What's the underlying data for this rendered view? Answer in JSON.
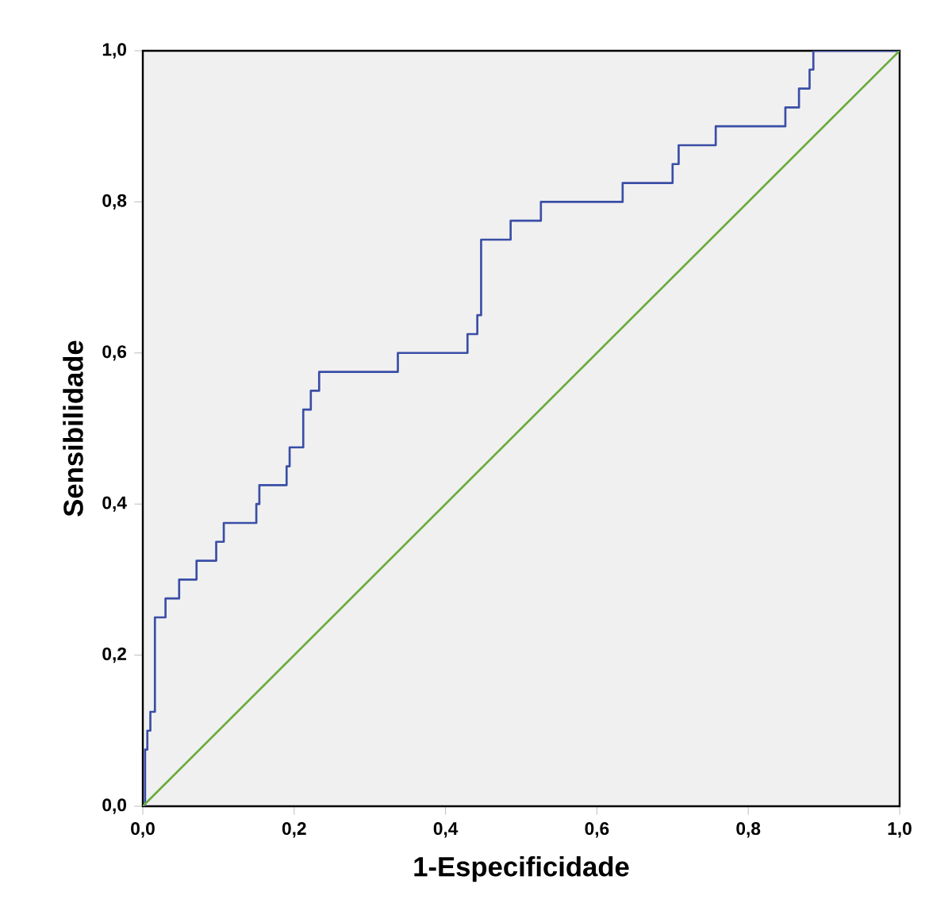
{
  "chart_data": {
    "type": "step",
    "xlabel": "1-Especificidade",
    "ylabel": "Sensibilidade",
    "xlim": [
      0,
      1
    ],
    "ylim": [
      0,
      1
    ],
    "xticks": [
      {
        "value": 0,
        "label": "0,0"
      },
      {
        "value": 0.2,
        "label": "0,2"
      },
      {
        "value": 0.4,
        "label": "0,4"
      },
      {
        "value": 0.6,
        "label": "0,6"
      },
      {
        "value": 0.8,
        "label": "0,8"
      },
      {
        "value": 1,
        "label": "1,0"
      }
    ],
    "yticks": [
      {
        "value": 0,
        "label": "0,0"
      },
      {
        "value": 0.2,
        "label": "0,2"
      },
      {
        "value": 0.4,
        "label": "0,4"
      },
      {
        "value": 0.6,
        "label": "0,6"
      },
      {
        "value": 0.8,
        "label": "0,8"
      },
      {
        "value": 1,
        "label": "1,0"
      }
    ],
    "grid": false,
    "series": [
      {
        "color": "#3a4ea6",
        "x": [
          0,
          0.003,
          0.006,
          0.01,
          0.016,
          0.03,
          0.048,
          0.071,
          0.097,
          0.107,
          0.15,
          0.154,
          0.19,
          0.194,
          0.212,
          0.222,
          0.233,
          0.337,
          0.429,
          0.442,
          0.447,
          0.486,
          0.526,
          0.634,
          0.7,
          0.708,
          0.757,
          0.849,
          0.867,
          0.881,
          0.886,
          1
        ],
        "values": [
          0,
          0.075,
          0.1,
          0.125,
          0.25,
          0.275,
          0.3,
          0.325,
          0.35,
          0.375,
          0.4,
          0.425,
          0.45,
          0.475,
          0.525,
          0.55,
          0.575,
          0.6,
          0.625,
          0.65,
          0.75,
          0.775,
          0.8,
          0.825,
          0.85,
          0.875,
          0.9,
          0.925,
          0.95,
          0.975,
          1,
          1
        ]
      },
      {
        "type": "line",
        "color": "#6aab3c",
        "x": [
          0,
          1
        ],
        "values": [
          0,
          1
        ]
      }
    ]
  }
}
